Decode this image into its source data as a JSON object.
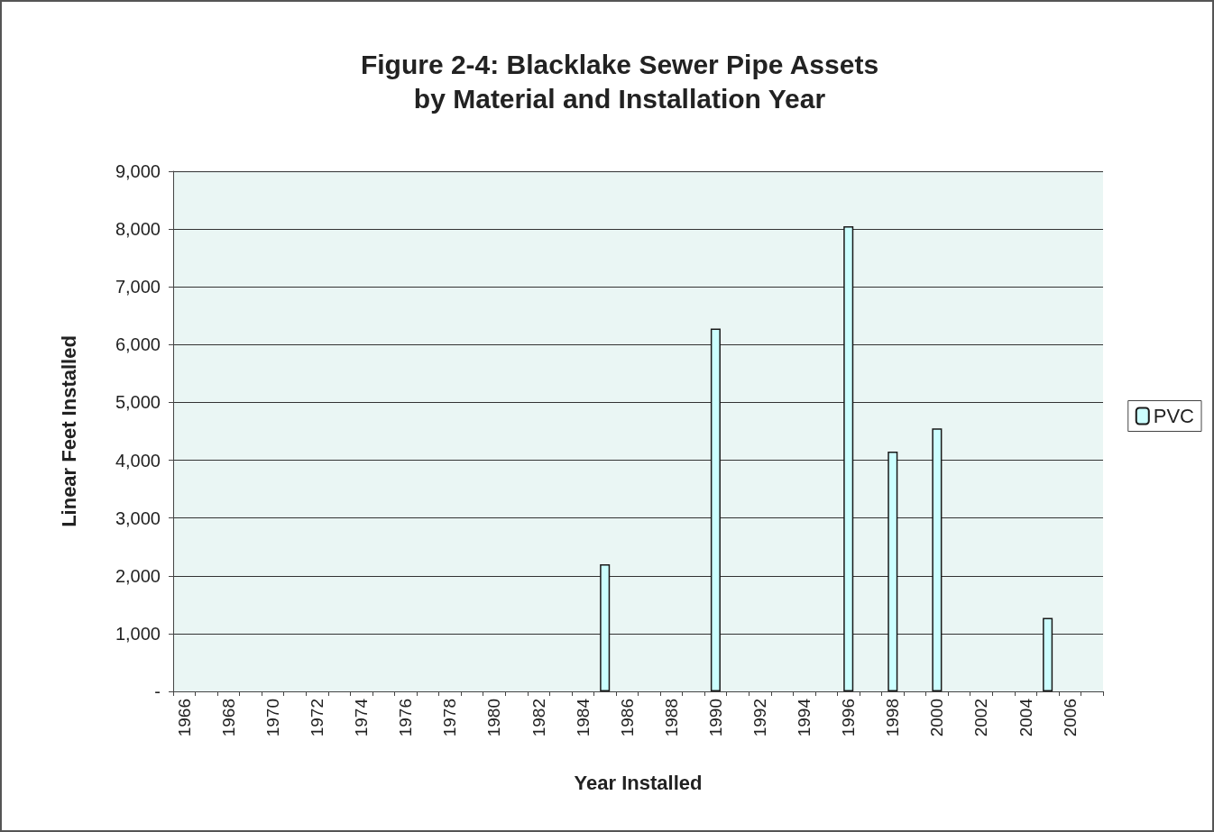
{
  "chart_data": {
    "type": "bar",
    "title": "Figure 2-4: Blacklake Sewer Pipe Assets\nby Material and Installation Year",
    "xlabel": "Year Installed",
    "ylabel": "Linear Feet Installed",
    "categories": [
      "1966",
      null,
      "1968",
      null,
      "1970",
      null,
      "1972",
      null,
      "1974",
      null,
      "1976",
      null,
      "1978",
      null,
      "1980",
      null,
      "1982",
      null,
      "1984",
      null,
      "1986",
      null,
      "1988",
      null,
      "1990",
      null,
      "1992",
      null,
      "1994",
      null,
      "1996",
      null,
      "1998",
      null,
      "2000",
      null,
      "2002",
      null,
      "2004",
      null,
      "2006",
      null
    ],
    "series": [
      {
        "name": "PVC",
        "color": "#ccffff",
        "values": [
          null,
          null,
          null,
          null,
          null,
          null,
          null,
          null,
          null,
          null,
          null,
          null,
          null,
          null,
          null,
          null,
          null,
          null,
          null,
          2200,
          null,
          null,
          null,
          null,
          6280,
          null,
          null,
          null,
          null,
          null,
          8050,
          null,
          4150,
          null,
          4550,
          null,
          null,
          null,
          null,
          1270,
          null,
          null
        ]
      }
    ],
    "ylim": [
      0,
      9000
    ],
    "yticks": [
      {
        "value": 0,
        "label": "-"
      },
      {
        "value": 1000,
        "label": "1,000"
      },
      {
        "value": 2000,
        "label": "2,000"
      },
      {
        "value": 3000,
        "label": "3,000"
      },
      {
        "value": 4000,
        "label": "4,000"
      },
      {
        "value": 5000,
        "label": "5,000"
      },
      {
        "value": 6000,
        "label": "6,000"
      },
      {
        "value": 7000,
        "label": "7,000"
      },
      {
        "value": 8000,
        "label": "8,000"
      },
      {
        "value": 9000,
        "label": "9,000"
      }
    ],
    "grid": "y",
    "legend": "right"
  }
}
